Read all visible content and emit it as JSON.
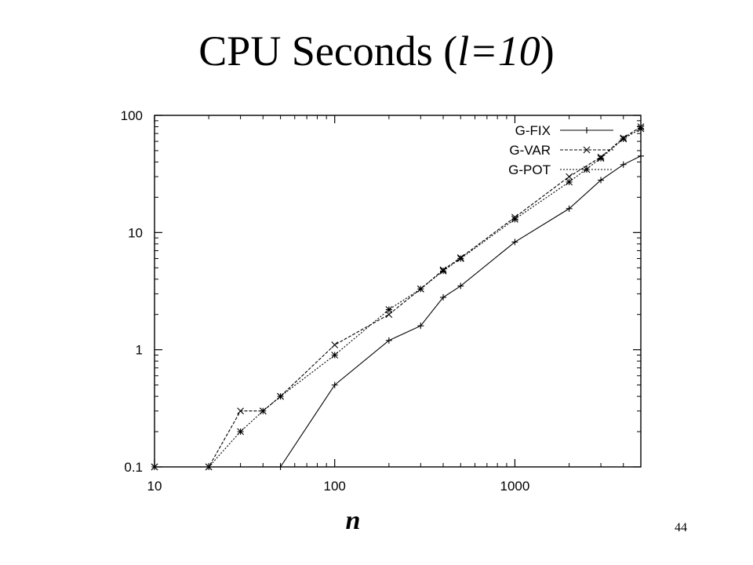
{
  "slide": {
    "title_prefix": "CPU Seconds (",
    "title_var": "l=10",
    "title_suffix": ")",
    "page_number": "44"
  },
  "chart_data": {
    "type": "line",
    "title": "CPU Seconds (l=10)",
    "xlabel": "n",
    "ylabel": "",
    "x_scale": "log",
    "y_scale": "log",
    "xlim": [
      10,
      5000
    ],
    "ylim": [
      0.1,
      100
    ],
    "x_ticks": [
      10,
      100,
      1000
    ],
    "x_tick_labels": [
      "10",
      "100",
      "1000"
    ],
    "y_ticks": [
      0.1,
      1,
      10,
      100
    ],
    "y_tick_labels": [
      "0.1",
      "1",
      "10",
      "100"
    ],
    "grid": false,
    "legend_position": "top-right",
    "series": [
      {
        "name": "G-FIX",
        "line_style": "solid",
        "marker": "+",
        "points": [
          [
            50,
            0.1
          ],
          [
            100,
            0.5
          ],
          [
            200,
            1.2
          ],
          [
            300,
            1.6
          ],
          [
            400,
            2.8
          ],
          [
            500,
            3.5
          ],
          [
            1000,
            8.3
          ],
          [
            2000,
            16
          ],
          [
            3000,
            28
          ],
          [
            4000,
            38
          ],
          [
            5000,
            45
          ]
        ]
      },
      {
        "name": "G-VAR",
        "line_style": "dashed",
        "marker": "x",
        "points": [
          [
            10,
            0.1
          ],
          [
            20,
            0.1
          ],
          [
            30,
            0.3
          ],
          [
            40,
            0.3
          ],
          [
            50,
            0.4
          ],
          [
            100,
            1.1
          ],
          [
            200,
            2.0
          ],
          [
            300,
            3.3
          ],
          [
            400,
            4.8
          ],
          [
            500,
            6.1
          ],
          [
            1000,
            13.5
          ],
          [
            2000,
            30
          ],
          [
            3000,
            44
          ],
          [
            4000,
            64
          ],
          [
            5000,
            80
          ]
        ]
      },
      {
        "name": "G-POT",
        "line_style": "dotted",
        "marker": "*",
        "points": [
          [
            10,
            0.1
          ],
          [
            20,
            0.1
          ],
          [
            30,
            0.2
          ],
          [
            40,
            0.3
          ],
          [
            50,
            0.4
          ],
          [
            100,
            0.9
          ],
          [
            200,
            2.2
          ],
          [
            300,
            3.3
          ],
          [
            400,
            4.7
          ],
          [
            500,
            6.0
          ],
          [
            1000,
            13.0
          ],
          [
            2000,
            27
          ],
          [
            3000,
            43
          ],
          [
            4000,
            63
          ],
          [
            5000,
            77
          ]
        ]
      }
    ]
  }
}
